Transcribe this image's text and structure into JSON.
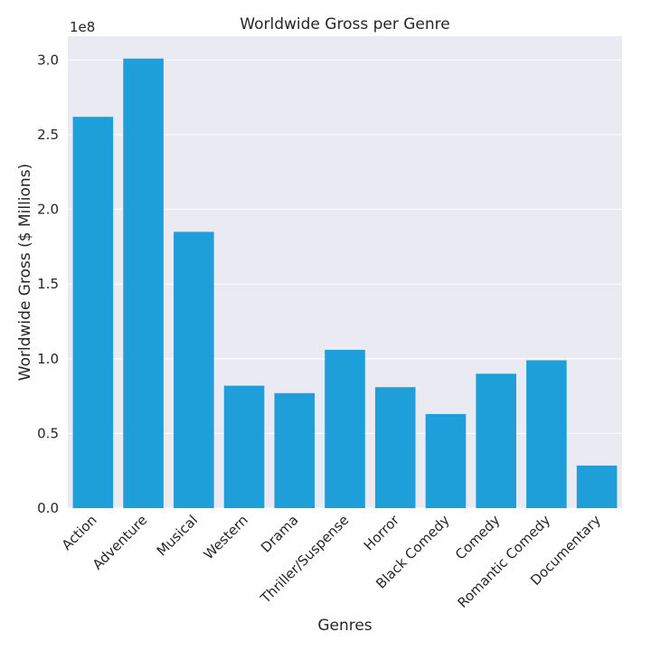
{
  "chart_data": {
    "type": "bar",
    "title": "Worldwide Gross per Genre",
    "xlabel": "Genres",
    "ylabel": "Worldwide Gross ($ Millions)",
    "offset_label": "1e8",
    "categories": [
      "Action",
      "Adventure",
      "Musical",
      "Western",
      "Drama",
      "Thriller/Suspense",
      "Horror",
      "Black Comedy",
      "Comedy",
      "Romantic Comedy",
      "Documentary"
    ],
    "values": [
      262000000,
      301000000,
      185000000,
      82000000,
      77000000,
      106000000,
      81000000,
      63000000,
      90000000,
      99000000,
      28500000
    ],
    "yticks": [
      0,
      50000000,
      100000000,
      150000000,
      200000000,
      250000000,
      300000000
    ],
    "ytick_labels": [
      "0.0",
      "0.5",
      "1.0",
      "1.5",
      "2.0",
      "2.5",
      "3.0"
    ],
    "ylim": [
      0,
      316000000
    ],
    "bar_color": "#1f9fda",
    "background_color": "#eaeaf2",
    "grid": true
  }
}
